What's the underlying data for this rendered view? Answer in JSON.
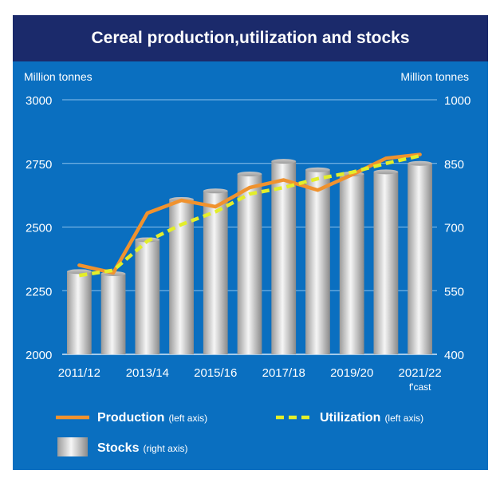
{
  "title": "Cereal production,utilization and stocks",
  "colors": {
    "panel": "#0a6fc0",
    "title_bar": "#1b2a6b",
    "production": "#f0922e",
    "utilization": "#e3ee2a",
    "stocks_light": "#f4f4f4",
    "stocks_dark": "#8f8f8f",
    "text": "#ffffff"
  },
  "chart_data": {
    "type": "bar",
    "title": "Cereal production,utilization and stocks",
    "left_axis_label": "Million tonnes",
    "right_axis_label": "Million tonnes",
    "left_ylim": [
      2000,
      3000
    ],
    "left_ticks": [
      "3000",
      "2750",
      "2500",
      "2250",
      "2000"
    ],
    "left_tick_values": [
      3000,
      2750,
      2500,
      2250,
      2000
    ],
    "right_ylim": [
      400,
      1000
    ],
    "right_ticks": [
      "1000",
      "850",
      "700",
      "550",
      "400"
    ],
    "right_tick_values": [
      1000,
      850,
      700,
      550,
      400
    ],
    "x_labels": [
      "2011/12",
      "2013/14",
      "2015/16",
      "2017/18",
      "2019/20",
      "2021/22"
    ],
    "forecast_note": "f'cast",
    "categories": [
      "2011/12",
      "2012/13",
      "2013/14",
      "2014/15",
      "2015/16",
      "2016/17",
      "2017/18",
      "2018/19",
      "2019/20",
      "2020/21",
      "2021/22"
    ],
    "series": [
      {
        "name": "Production",
        "axis": "left",
        "kind": "line",
        "values": [
          2350,
          2320,
          2555,
          2605,
          2580,
          2655,
          2685,
          2645,
          2705,
          2770,
          2785
        ]
      },
      {
        "name": "Utilization",
        "axis": "left",
        "kind": "dashed-line",
        "values": [
          2310,
          2330,
          2445,
          2510,
          2560,
          2630,
          2655,
          2690,
          2715,
          2750,
          2780
        ]
      },
      {
        "name": "Stocks",
        "axis": "right",
        "kind": "bar",
        "values": [
          595,
          590,
          670,
          765,
          785,
          825,
          855,
          835,
          825,
          830,
          850
        ]
      }
    ],
    "legend": [
      {
        "name": "Production",
        "note": "(left axis)"
      },
      {
        "name": "Utilization",
        "note": "(left axis)"
      },
      {
        "name": "Stocks",
        "note": "(right axis)"
      }
    ],
    "grid": true,
    "legend_position": "bottom"
  }
}
